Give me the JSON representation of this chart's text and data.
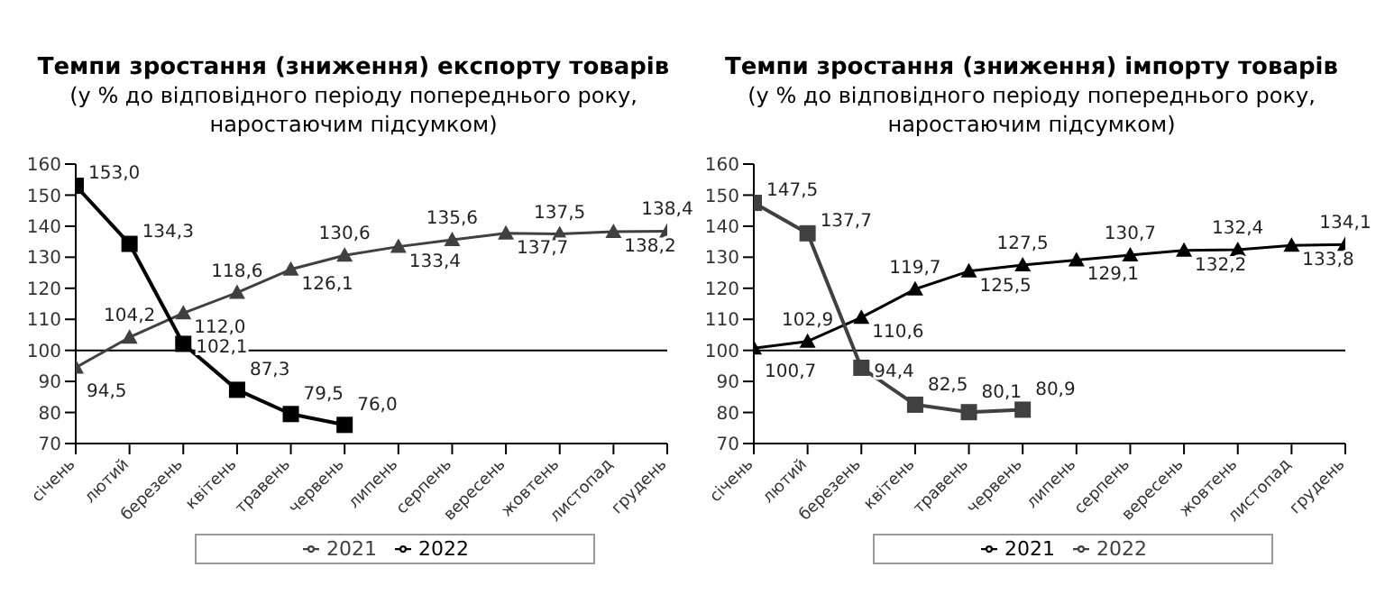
{
  "chart_data": [
    {
      "type": "line",
      "title": "Темпи зростання (зниження) експорту товарів",
      "subtitle": "(у % до відповідного періоду попереднього року,\nнаростаючим підсумком)",
      "categories": [
        "січень",
        "лютий",
        "березень",
        "квітень",
        "травень",
        "червень",
        "липень",
        "серпень",
        "вересень",
        "жовтень",
        "листопад",
        "грудень"
      ],
      "series": [
        {
          "name": "2021",
          "color": "#404040",
          "marker": "triangle",
          "values": [
            94.5,
            104.2,
            112.0,
            118.6,
            126.1,
            130.6,
            133.4,
            135.6,
            137.7,
            137.5,
            138.2,
            138.4
          ],
          "value_labels": [
            "94,5",
            "104,2",
            "112,0",
            "118,6",
            "126,1",
            "130,6",
            "133,4",
            "135,6",
            "137,7",
            "137,5",
            "138,2",
            "138,4"
          ]
        },
        {
          "name": "2022",
          "color": "#000000",
          "marker": "square",
          "values": [
            153.0,
            134.3,
            102.1,
            87.3,
            79.5,
            76.0,
            null,
            null,
            null,
            null,
            null,
            null
          ],
          "value_labels": [
            "153,0",
            "134,3",
            "102,1",
            "87,3",
            "79,5",
            "76,0",
            null,
            null,
            null,
            null,
            null,
            null
          ]
        }
      ],
      "ylim": [
        70,
        160
      ],
      "yticks": [
        70,
        80,
        90,
        100,
        110,
        120,
        130,
        140,
        150,
        160
      ],
      "ref_lines": [
        {
          "axis": "y",
          "value": 100,
          "color": "#000000"
        }
      ],
      "legend": "bottom"
    },
    {
      "type": "line",
      "title": "Темпи зростання (зниження) імпорту товарів",
      "subtitle": "(у % до відповідного періоду попереднього року,\nнаростаючим підсумком)",
      "categories": [
        "січень",
        "лютий",
        "березень",
        "квітень",
        "травень",
        "червень",
        "липень",
        "серпень",
        "вересень",
        "жовтень",
        "листопад",
        "грудень"
      ],
      "series": [
        {
          "name": "2021",
          "color": "#000000",
          "marker": "triangle",
          "values": [
            100.7,
            102.9,
            110.6,
            119.7,
            125.5,
            127.5,
            129.1,
            130.7,
            132.2,
            132.4,
            133.8,
            134.1
          ],
          "value_labels": [
            "100,7",
            "102,9",
            "110,6",
            "119,7",
            "125,5",
            "127,5",
            "129,1",
            "130,7",
            "132,2",
            "132,4",
            "133,8",
            "134,1"
          ]
        },
        {
          "name": "2022",
          "color": "#404040",
          "marker": "square",
          "values": [
            147.5,
            137.7,
            94.4,
            82.5,
            80.1,
            80.9,
            null,
            null,
            null,
            null,
            null,
            null
          ],
          "value_labels": [
            "147,5",
            "137,7",
            "94,4",
            "82,5",
            "80,1",
            "80,9",
            null,
            null,
            null,
            null,
            null,
            null
          ]
        }
      ],
      "ylim": [
        70,
        160
      ],
      "yticks": [
        70,
        80,
        90,
        100,
        110,
        120,
        130,
        140,
        150,
        160
      ],
      "ref_lines": [
        {
          "axis": "y",
          "value": 100,
          "color": "#000000"
        }
      ],
      "legend": "bottom"
    }
  ]
}
